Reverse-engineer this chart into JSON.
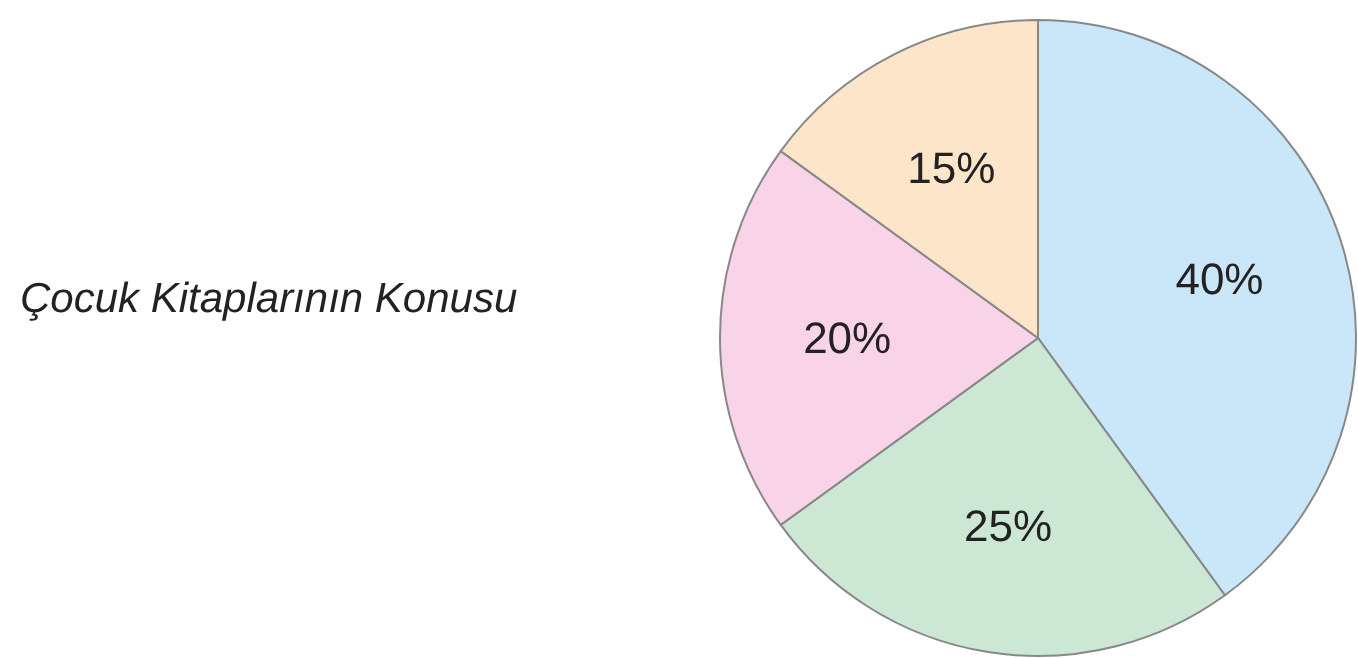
{
  "chart_data": {
    "type": "pie",
    "title": "Çocuk Kitaplarının Konusu",
    "categories": [
      null,
      null,
      null,
      null
    ],
    "values": [
      40,
      25,
      20,
      15
    ],
    "colors": [
      "#c9e7f9",
      "#cce7d4",
      "#f9d3e7",
      "#fde5ca"
    ],
    "value_labels": [
      "40%",
      "25%",
      "20%",
      "15%"
    ],
    "legend": false
  }
}
